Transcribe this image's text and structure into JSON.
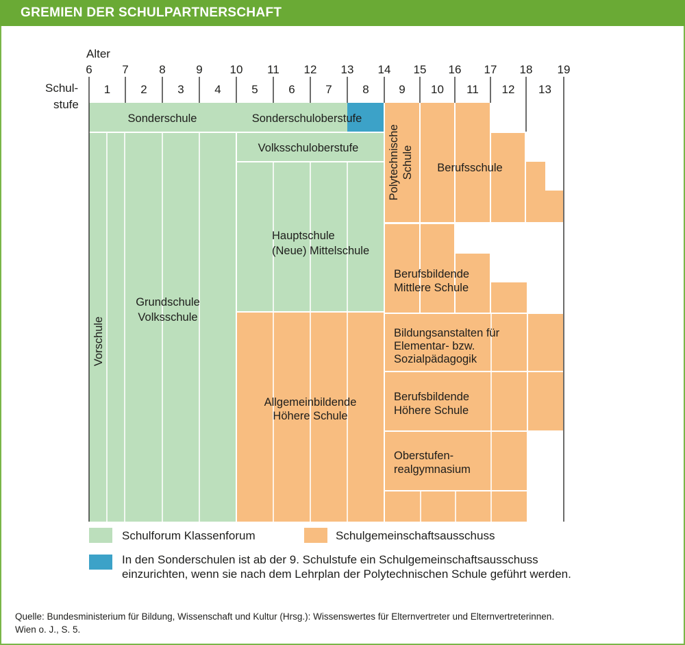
{
  "header": {
    "title": "GREMIEN DER SCHULPARTNERSCHAFT"
  },
  "axis": {
    "alter_label": "Alter",
    "ages": [
      "6",
      "7",
      "8",
      "9",
      "10",
      "11",
      "12",
      "13",
      "14",
      "15",
      "16",
      "17",
      "18",
      "19"
    ],
    "schulstufe_label_1": "Schul-",
    "schulstufe_label_2": "stufe",
    "stufen": [
      "1",
      "2",
      "3",
      "4",
      "5",
      "6",
      "7",
      "8",
      "9",
      "10",
      "11",
      "12",
      "13"
    ]
  },
  "schools": {
    "sonderschule": "Sonderschule",
    "sonderschuloberstufe": "Sonderschuloberstufe",
    "volksschuloberstufe": "Volksschuloberstufe",
    "hauptschule_1": "Hauptschule",
    "hauptschule_2": "(Neue) Mittelschule",
    "grundschule_1": "Grundschule",
    "grundschule_2": "Volksschule",
    "vorschule": "Vorschule",
    "ahs_1": "Allgemeinbildende",
    "ahs_2": "Höhere Schule",
    "poly_1": "Polytechnische",
    "poly_2": "Schule",
    "berufsschule": "Berufsschule",
    "bms_1": "Berufsbildende",
    "bms_2": "Mittlere Schule",
    "bafep_1": "Bildungsanstalten für",
    "bafep_2": "Elementar- bzw.",
    "bafep_3": "Sozialpädagogik",
    "bhs_1": "Berufsbildende",
    "bhs_2": "Höhere Schule",
    "orgym_1": "Oberstufen-",
    "orgym_2": "realgymnasium"
  },
  "legend": {
    "green_label": "Schulforum Klassenforum",
    "orange_label": "Schulgemeinschaftsausschuss",
    "blue_line_1": "In den Sonderschulen ist ab der 9. Schulstufe ein Schulgemeinschaftsausschuss",
    "blue_line_2": "einzurichten, wenn sie nach dem Lehrplan der Polytechnischen Schule geführt werden."
  },
  "source": {
    "line_1": "Quelle: Bundesministerium für Bildung, Wissenschaft und Kultur (Hrsg.): Wissenswertes für Elternvertreter und Elternvertreterinnen.",
    "line_2": "Wien o. J., S. 5."
  },
  "colors": {
    "green": "#bcdfbc",
    "orange": "#f8bd80",
    "blue": "#3ca2c8",
    "header": "#6aaa35",
    "frame": "#7ab648"
  }
}
